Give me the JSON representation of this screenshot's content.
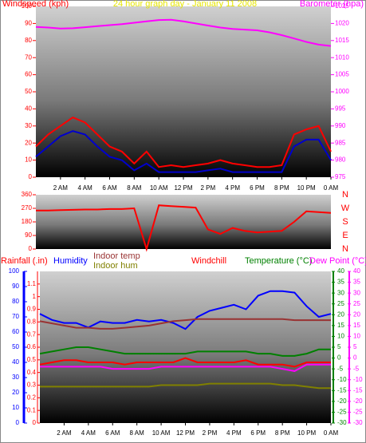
{
  "chart_data": [
    {
      "type": "line",
      "title": "24 hour graph day - January 11 2008",
      "ylabel": "Windspeed (kph)",
      "y2label": "Barometer (hpa)",
      "x": [
        0,
        1,
        2,
        3,
        4,
        5,
        6,
        7,
        8,
        9,
        10,
        11,
        12,
        13,
        14,
        15,
        16,
        17,
        18,
        19,
        20,
        21,
        22,
        23,
        24
      ],
      "xlim": [
        0,
        24
      ],
      "xticks": [
        {
          "value": 2,
          "label": "2 AM"
        },
        {
          "value": 4,
          "label": "4 AM"
        },
        {
          "value": 6,
          "label": "6 AM"
        },
        {
          "value": 8,
          "label": "8 AM"
        },
        {
          "value": 10,
          "label": "10 AM"
        },
        {
          "value": 12,
          "label": "12 PM"
        },
        {
          "value": 14,
          "label": "2 PM"
        },
        {
          "value": 16,
          "label": "4 PM"
        },
        {
          "value": 18,
          "label": "6 PM"
        },
        {
          "value": 20,
          "label": "8 PM"
        },
        {
          "value": 22,
          "label": "10 PM"
        },
        {
          "value": 24,
          "label": "0 AM"
        }
      ],
      "ylim": [
        0,
        100
      ],
      "yticks": [
        0,
        10,
        20,
        30,
        40,
        50,
        60,
        70,
        80,
        90,
        100
      ],
      "y2lim": [
        975,
        1025
      ],
      "y2ticks": [
        975,
        980,
        985,
        990,
        995,
        1000,
        1005,
        1010,
        1015,
        1020,
        1025
      ],
      "series": [
        {
          "color": "#ff0000",
          "values": [
            18,
            25,
            30,
            35,
            32,
            25,
            18,
            15,
            8,
            15,
            6,
            7,
            6,
            7,
            8,
            10,
            8,
            7,
            6,
            6,
            7,
            25,
            28,
            30,
            15
          ]
        },
        {
          "color": "#0000cc",
          "values": [
            12,
            18,
            24,
            27,
            25,
            18,
            12,
            10,
            4,
            8,
            3,
            3,
            3,
            3,
            4,
            5,
            3,
            3,
            3,
            3,
            3,
            18,
            22,
            22,
            10
          ]
        },
        {
          "color": "#ff00ff",
          "axis": "y2",
          "values": [
            1019,
            1018.8,
            1018.5,
            1018.6,
            1018.9,
            1019.2,
            1019.5,
            1019.8,
            1020.2,
            1020.6,
            1021,
            1021.1,
            1020.6,
            1020,
            1019.4,
            1018.8,
            1018.4,
            1018.2,
            1018,
            1017.4,
            1016.6,
            1015.6,
            1014.6,
            1013.8,
            1013.4
          ]
        }
      ]
    },
    {
      "type": "line",
      "x": [
        0,
        1,
        2,
        3,
        4,
        5,
        6,
        7,
        8,
        9,
        10,
        11,
        12,
        13,
        14,
        15,
        16,
        17,
        18,
        19,
        20,
        21,
        22,
        23,
        24
      ],
      "xlim": [
        0,
        24
      ],
      "ylim": [
        0,
        360
      ],
      "yticks": [
        0,
        90,
        180,
        270,
        360
      ],
      "direction_labels": [
        "N",
        "E",
        "S",
        "W",
        "N"
      ],
      "series": [
        {
          "color": "#ff0000",
          "values": [
            255,
            255,
            258,
            260,
            262,
            262,
            265,
            265,
            270,
            0,
            290,
            285,
            280,
            275,
            130,
            100,
            140,
            120,
            110,
            115,
            120,
            180,
            250,
            245,
            240
          ]
        }
      ]
    },
    {
      "type": "line",
      "rain_label": "Rainfall (.in)",
      "x": [
        0,
        1,
        2,
        3,
        4,
        5,
        6,
        7,
        8,
        9,
        10,
        11,
        12,
        13,
        14,
        15,
        16,
        17,
        18,
        19,
        20,
        21,
        22,
        23,
        24
      ],
      "xlim": [
        0,
        24
      ],
      "xticks": [
        {
          "value": 2,
          "label": "2 AM"
        },
        {
          "value": 4,
          "label": "4 AM"
        },
        {
          "value": 6,
          "label": "6 AM"
        },
        {
          "value": 8,
          "label": "8 AM"
        },
        {
          "value": 10,
          "label": "10 AM"
        },
        {
          "value": 12,
          "label": "12 PM"
        },
        {
          "value": 14,
          "label": "2 PM"
        },
        {
          "value": 16,
          "label": "4 PM"
        },
        {
          "value": 18,
          "label": "6 PM"
        },
        {
          "value": 20,
          "label": "8 PM"
        },
        {
          "value": 22,
          "label": "10 PM"
        },
        {
          "value": 24,
          "label": "0 AM"
        }
      ],
      "ylim": [
        0,
        100
      ],
      "yticks": [
        0,
        10,
        20,
        30,
        40,
        50,
        60,
        70,
        80,
        90,
        100
      ],
      "rain_lim": [
        0,
        1.2
      ],
      "rain_ticks": [
        0,
        0.1,
        0.2,
        0.3,
        0.4,
        0.5,
        0.6,
        0.7,
        0.8,
        0.9,
        1,
        1.1
      ],
      "y2lim": [
        -30,
        40
      ],
      "y2ticks": [
        -30,
        -25,
        -20,
        -15,
        -10,
        -5,
        0,
        5,
        10,
        15,
        20,
        25,
        30,
        35,
        40
      ],
      "y3ticks": [
        -30,
        -25,
        -20,
        -15,
        -10,
        -5,
        0,
        5,
        10,
        15,
        20,
        25,
        30,
        35,
        40
      ],
      "series": [
        {
          "name": "Humidity",
          "color": "#0000ff",
          "values": [
            72,
            68,
            66,
            66,
            63,
            67,
            66,
            66,
            68,
            67,
            68,
            66,
            62,
            70,
            74,
            76,
            78,
            75,
            84,
            87,
            87,
            86,
            77,
            70,
            72
          ]
        },
        {
          "name": "Indoor temp",
          "color": "#993333",
          "axis": "y2",
          "values": [
            17,
            16,
            15,
            14,
            14,
            13.5,
            13.5,
            14,
            14.5,
            15,
            16,
            17,
            17.5,
            18,
            18,
            18,
            18,
            18,
            18,
            18,
            18,
            17.5,
            17.5,
            17.5,
            17.5
          ]
        },
        {
          "name": "Indoor hum",
          "color": "#808000",
          "values": [
            24,
            24,
            24,
            24,
            24,
            24,
            24,
            24,
            24,
            24,
            25,
            25,
            25,
            25,
            26,
            26,
            26,
            26,
            26,
            26,
            25,
            25,
            24,
            23,
            23
          ]
        },
        {
          "name": "Windchill",
          "color": "#ff0000",
          "axis": "y2",
          "values": [
            -3,
            -2,
            -1,
            -1,
            -2,
            -2,
            -2,
            -3,
            -2,
            -2,
            -2,
            -2,
            0,
            -2,
            -2,
            -2,
            -2,
            -1,
            -3,
            -3,
            -3,
            -4,
            -2,
            -2,
            -2
          ]
        },
        {
          "name": "Temperature (°C)",
          "color": "#008000",
          "axis": "y2",
          "values": [
            2,
            3,
            4,
            5,
            5,
            4,
            3,
            2,
            2,
            2,
            2,
            2,
            2,
            3,
            3,
            3,
            3,
            3,
            2,
            2,
            1,
            1,
            2,
            4,
            4
          ]
        },
        {
          "name": "Dew Point (°C)",
          "color": "#ff00ff",
          "axis": "y2",
          "values": [
            -4,
            -4,
            -4,
            -4,
            -4,
            -4,
            -5,
            -5,
            -5,
            -5,
            -4,
            -4,
            -4,
            -4,
            -4,
            -4,
            -4,
            -4,
            -4,
            -4,
            -5,
            -6,
            -3,
            -3,
            -3
          ]
        }
      ]
    }
  ]
}
